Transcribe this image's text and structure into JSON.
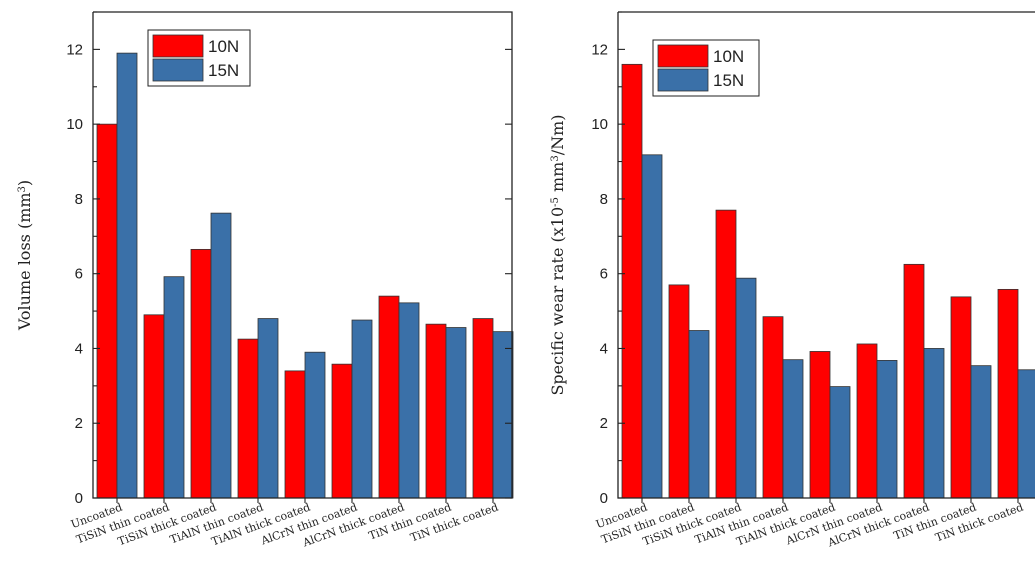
{
  "chart_data": [
    {
      "type": "bar",
      "ylabel_main": "Volume loss (mm",
      "ylabel_sup": "3",
      "ylabel_end": ")",
      "ylim": [
        0,
        13
      ],
      "yticks": [
        "0",
        "2",
        "4",
        "6",
        "8",
        "10",
        "12"
      ],
      "categories": [
        "Uncoated",
        "TiSiN thin coated",
        "TiSiN thick coated",
        "TiAlN thin coated",
        "TiAlN thick coated",
        "AlCrN thin coated",
        "AlCrN thick coated",
        "TiN thin coated",
        "TiN thick coated"
      ],
      "series": [
        {
          "name": "10N",
          "color": "#ff0000",
          "values": [
            10.0,
            4.9,
            6.65,
            4.25,
            3.4,
            3.58,
            5.4,
            4.65,
            4.8
          ]
        },
        {
          "name": "15N",
          "color": "#3a70a8",
          "values": [
            11.9,
            5.92,
            7.62,
            4.8,
            3.9,
            4.76,
            5.22,
            4.56,
            4.45
          ]
        }
      ],
      "legend_position": "top-right"
    },
    {
      "type": "bar",
      "ylabel_main": "Specific wear rate (x10",
      "ylabel_sup": "-5",
      "ylabel_mid": " mm",
      "ylabel_sup2": "3",
      "ylabel_end": "/Nm)",
      "ylim": [
        0,
        13
      ],
      "yticks": [
        "0",
        "2",
        "4",
        "6",
        "8",
        "10",
        "12"
      ],
      "categories": [
        "Uncoated",
        "TiSiN thin coated",
        "TiSiN thick coated",
        "TiAlN thin coated",
        "TiAlN thick coated",
        "AlCrN thin coated",
        "AlCrN thick coated",
        "TiN thin coated",
        "TiN thick coated"
      ],
      "series": [
        {
          "name": "10N",
          "color": "#ff0000",
          "values": [
            11.6,
            5.7,
            7.7,
            4.85,
            3.92,
            4.12,
            6.25,
            5.38,
            5.58
          ]
        },
        {
          "name": "15N",
          "color": "#3a70a8",
          "values": [
            9.18,
            4.48,
            5.88,
            3.7,
            2.98,
            3.68,
            4.0,
            3.54,
            3.43
          ]
        }
      ],
      "legend_position": "top-center"
    }
  ]
}
